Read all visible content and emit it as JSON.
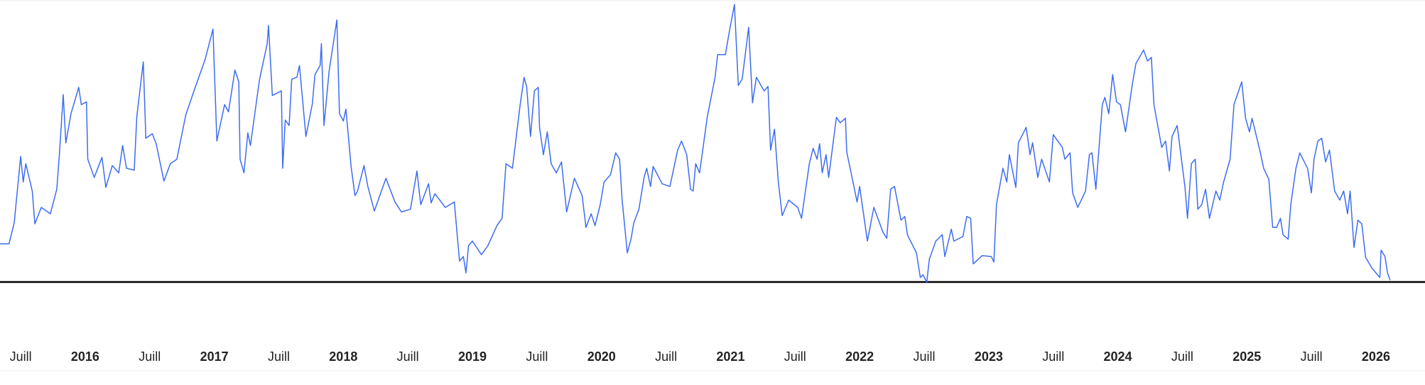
{
  "chart_data": {
    "type": "line",
    "x": [
      2015.34,
      2015.41,
      2015.45,
      2015.5,
      2015.52,
      2015.54,
      2015.59,
      2015.61,
      2015.66,
      2015.73,
      2015.78,
      2015.8,
      2015.83,
      2015.85,
      2015.89,
      2015.95,
      2015.97,
      2016.01,
      2016.02,
      2016.07,
      2016.13,
      2016.16,
      2016.21,
      2016.26,
      2016.29,
      2016.32,
      2016.38,
      2016.4,
      2016.45,
      2016.47,
      2016.52,
      2016.55,
      2016.61,
      2016.66,
      2016.71,
      2016.78,
      2016.85,
      2016.93,
      2016.99,
      2017.02,
      2017.08,
      2017.11,
      2017.16,
      2017.19,
      2017.2,
      2017.23,
      2017.26,
      2017.28,
      2017.35,
      2017.41,
      2017.42,
      2017.45,
      2017.52,
      2017.53,
      2017.55,
      2017.58,
      2017.6,
      2017.64,
      2017.66,
      2017.71,
      2017.76,
      2017.78,
      2017.82,
      2017.83,
      2017.85,
      2017.89,
      2017.95,
      2017.97,
      2018.0,
      2018.02,
      2018.06,
      2018.09,
      2018.11,
      2018.16,
      2018.19,
      2018.24,
      2018.33,
      2018.4,
      2018.45,
      2018.52,
      2018.57,
      2018.6,
      2018.66,
      2018.68,
      2018.71,
      2018.79,
      2018.86,
      2018.9,
      2018.93,
      2018.95,
      2018.97,
      2019.0,
      2019.07,
      2019.12,
      2019.19,
      2019.23,
      2019.26,
      2019.31,
      2019.34,
      2019.37,
      2019.4,
      2019.42,
      2019.45,
      2019.48,
      2019.51,
      2019.52,
      2019.55,
      2019.58,
      2019.61,
      2019.65,
      2019.69,
      2019.73,
      2019.79,
      2019.85,
      2019.88,
      2019.92,
      2019.95,
      2019.99,
      2020.02,
      2020.07,
      2020.11,
      2020.14,
      2020.16,
      2020.2,
      2020.23,
      2020.25,
      2020.29,
      2020.33,
      2020.35,
      2020.38,
      2020.4,
      2020.47,
      2020.53,
      2020.59,
      2020.62,
      2020.66,
      2020.69,
      2020.71,
      2020.73,
      2020.76,
      2020.82,
      2020.88,
      2020.9,
      2020.96,
      2020.99,
      2021.03,
      2021.06,
      2021.09,
      2021.14,
      2021.17,
      2021.2,
      2021.26,
      2021.29,
      2021.31,
      2021.34,
      2021.37,
      2021.4,
      2021.45,
      2021.52,
      2021.55,
      2021.61,
      2021.64,
      2021.67,
      2021.69,
      2021.71,
      2021.74,
      2021.76,
      2021.82,
      2021.85,
      2021.89,
      2021.9,
      2021.96,
      2021.98,
      2022.0,
      2022.06,
      2022.11,
      2022.18,
      2022.21,
      2022.24,
      2022.27,
      2022.32,
      2022.35,
      2022.37,
      2022.44,
      2022.47,
      2022.49,
      2022.52,
      2022.54,
      2022.59,
      2022.64,
      2022.66,
      2022.71,
      2022.73,
      2022.8,
      2022.83,
      2022.86,
      2022.88,
      2022.95,
      2023.02,
      2023.04,
      2023.06,
      2023.11,
      2023.14,
      2023.16,
      2023.21,
      2023.23,
      2023.29,
      2023.32,
      2023.34,
      2023.38,
      2023.41,
      2023.47,
      2023.5,
      2023.57,
      2023.59,
      2023.63,
      2023.65,
      2023.69,
      2023.75,
      2023.78,
      2023.8,
      2023.83,
      2023.88,
      2023.9,
      2023.93,
      2023.96,
      2023.99,
      2024.02,
      2024.06,
      2024.11,
      2024.14,
      2024.2,
      2024.23,
      2024.26,
      2024.28,
      2024.34,
      2024.37,
      2024.4,
      2024.42,
      2024.46,
      2024.52,
      2024.54,
      2024.57,
      2024.6,
      2024.62,
      2024.65,
      2024.68,
      2024.71,
      2024.76,
      2024.79,
      2024.82,
      2024.87,
      2024.9,
      2024.96,
      2024.99,
      2025.02,
      2025.04,
      2025.1,
      2025.13,
      2025.17,
      2025.2,
      2025.23,
      2025.26,
      2025.28,
      2025.32,
      2025.34,
      2025.38,
      2025.41,
      2025.47,
      2025.5,
      2025.52,
      2025.55,
      2025.58,
      2025.61,
      2025.64,
      2025.68,
      2025.72,
      2025.75,
      2025.78,
      2025.8,
      2025.83,
      2025.86,
      2025.89,
      2025.92,
      2025.97,
      2026.03,
      2026.04,
      2026.07,
      2026.09,
      2026.11
    ],
    "values": [
      42,
      42,
      65,
      138,
      110,
      130,
      100,
      64,
      82,
      75,
      102,
      140,
      206,
      153,
      185,
      214,
      195,
      198,
      135,
      115,
      137,
      104,
      128,
      120,
      150,
      125,
      123,
      182,
      242,
      158,
      163,
      152,
      111,
      130,
      135,
      184,
      213,
      245,
      278,
      155,
      195,
      187,
      233,
      220,
      135,
      120,
      164,
      150,
      222,
      262,
      282,
      205,
      210,
      125,
      178,
      172,
      223,
      225,
      238,
      160,
      196,
      228,
      238,
      262,
      172,
      232,
      288,
      185,
      177,
      190,
      127,
      95,
      100,
      128,
      105,
      78,
      114,
      88,
      77,
      80,
      122,
      85,
      108,
      87,
      97,
      82,
      88,
      23,
      28,
      10,
      40,
      45,
      30,
      40,
      62,
      70,
      130,
      125,
      160,
      195,
      225,
      215,
      160,
      210,
      214,
      170,
      140,
      165,
      130,
      120,
      132,
      77,
      114,
      95,
      60,
      75,
      62,
      85,
      110,
      118,
      142,
      135,
      90,
      32,
      48,
      65,
      80,
      115,
      125,
      105,
      127,
      108,
      105,
      145,
      155,
      140,
      102,
      100,
      130,
      120,
      182,
      225,
      250,
      250,
      275,
      305,
      216,
      223,
      280,
      197,
      225,
      210,
      215,
      145,
      168,
      110,
      73,
      90,
      82,
      70,
      130,
      147,
      135,
      152,
      120,
      140,
      115,
      181,
      175,
      180,
      143,
      102,
      88,
      105,
      45,
      82,
      55,
      48,
      102,
      105,
      68,
      72,
      52,
      32,
      5,
      8,
      0,
      25,
      45,
      52,
      28,
      58,
      45,
      50,
      72,
      70,
      20,
      29,
      28,
      22,
      85,
      125,
      110,
      140,
      104,
      153,
      170,
      140,
      153,
      115,
      135,
      110,
      162,
      148,
      135,
      142,
      98,
      82,
      100,
      140,
      142,
      102,
      195,
      203,
      185,
      228,
      198,
      195,
      165,
      215,
      240,
      255,
      243,
      247,
      195,
      148,
      155,
      122,
      160,
      172,
      105,
      70,
      130,
      135,
      80,
      85,
      102,
      70,
      100,
      90,
      110,
      135,
      195,
      220,
      180,
      165,
      180,
      145,
      125,
      113,
      60,
      60,
      70,
      52,
      47,
      85,
      125,
      142,
      125,
      98,
      135,
      155,
      158,
      132,
      145,
      100,
      90,
      100,
      75,
      100,
      38,
      68,
      64,
      27,
      15,
      5,
      35,
      28,
      10,
      2
    ],
    "color": "#3d6cf2",
    "xlim": [
      2015.34,
      2026.38
    ],
    "ylim": [
      0,
      310
    ],
    "xticks": [
      {
        "value": 2015.5,
        "label": "Juill"
      },
      2016,
      {
        "value": 2016.5,
        "label": "Juill"
      },
      2017,
      {
        "value": 2017.5,
        "label": "Juill"
      },
      2018,
      {
        "value": 2018.5,
        "label": "Juill"
      },
      2019,
      {
        "value": 2019.5,
        "label": "Juill"
      },
      2020,
      {
        "value": 2020.5,
        "label": "Juill"
      },
      2021,
      {
        "value": 2021.5,
        "label": "Juill"
      },
      2022,
      {
        "value": 2022.5,
        "label": "Juill"
      },
      2023,
      {
        "value": 2023.5,
        "label": "Juill"
      },
      2024,
      {
        "value": 2024.5,
        "label": "Juill"
      },
      2025,
      {
        "value": 2025.5,
        "label": "Juill"
      },
      2026
    ],
    "grid": false
  }
}
